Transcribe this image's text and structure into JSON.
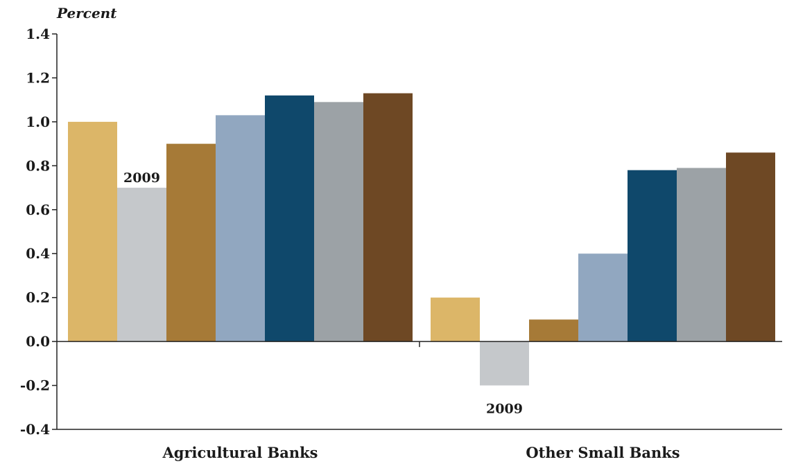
{
  "chart_data": {
    "type": "bar",
    "ylabel": "Percent",
    "ylim": [
      -0.4,
      1.4
    ],
    "yticks": [
      1.4,
      1.2,
      1.0,
      0.8,
      0.6,
      0.4,
      0.2,
      0.0,
      -0.2,
      -0.4
    ],
    "ytick_labels": [
      "1.4",
      "1.2",
      "1.0",
      "0.8",
      "0.6",
      "0.4",
      "0.2",
      "0.0",
      "-0.2",
      "-0.4"
    ],
    "categories": [
      "Agricultural Banks",
      "Other Small Banks"
    ],
    "series": [
      {
        "color": "#dcb668",
        "values": [
          1.0,
          0.2
        ]
      },
      {
        "color": "#c5c8cb",
        "values": [
          0.7,
          -0.2
        ]
      },
      {
        "color": "#a67a37",
        "values": [
          0.9,
          0.1
        ]
      },
      {
        "color": "#91a7c0",
        "values": [
          1.03,
          0.4
        ]
      },
      {
        "color": "#0f486b",
        "values": [
          1.12,
          0.78
        ]
      },
      {
        "color": "#9ca2a6",
        "values": [
          1.09,
          0.79
        ]
      },
      {
        "color": "#6e4824",
        "values": [
          1.13,
          0.86
        ]
      }
    ],
    "annotations": [
      {
        "text": "2009",
        "series": 1,
        "category": 0
      },
      {
        "text": "2009",
        "series": 1,
        "category": 1
      }
    ],
    "grid": false,
    "legend": "none"
  }
}
